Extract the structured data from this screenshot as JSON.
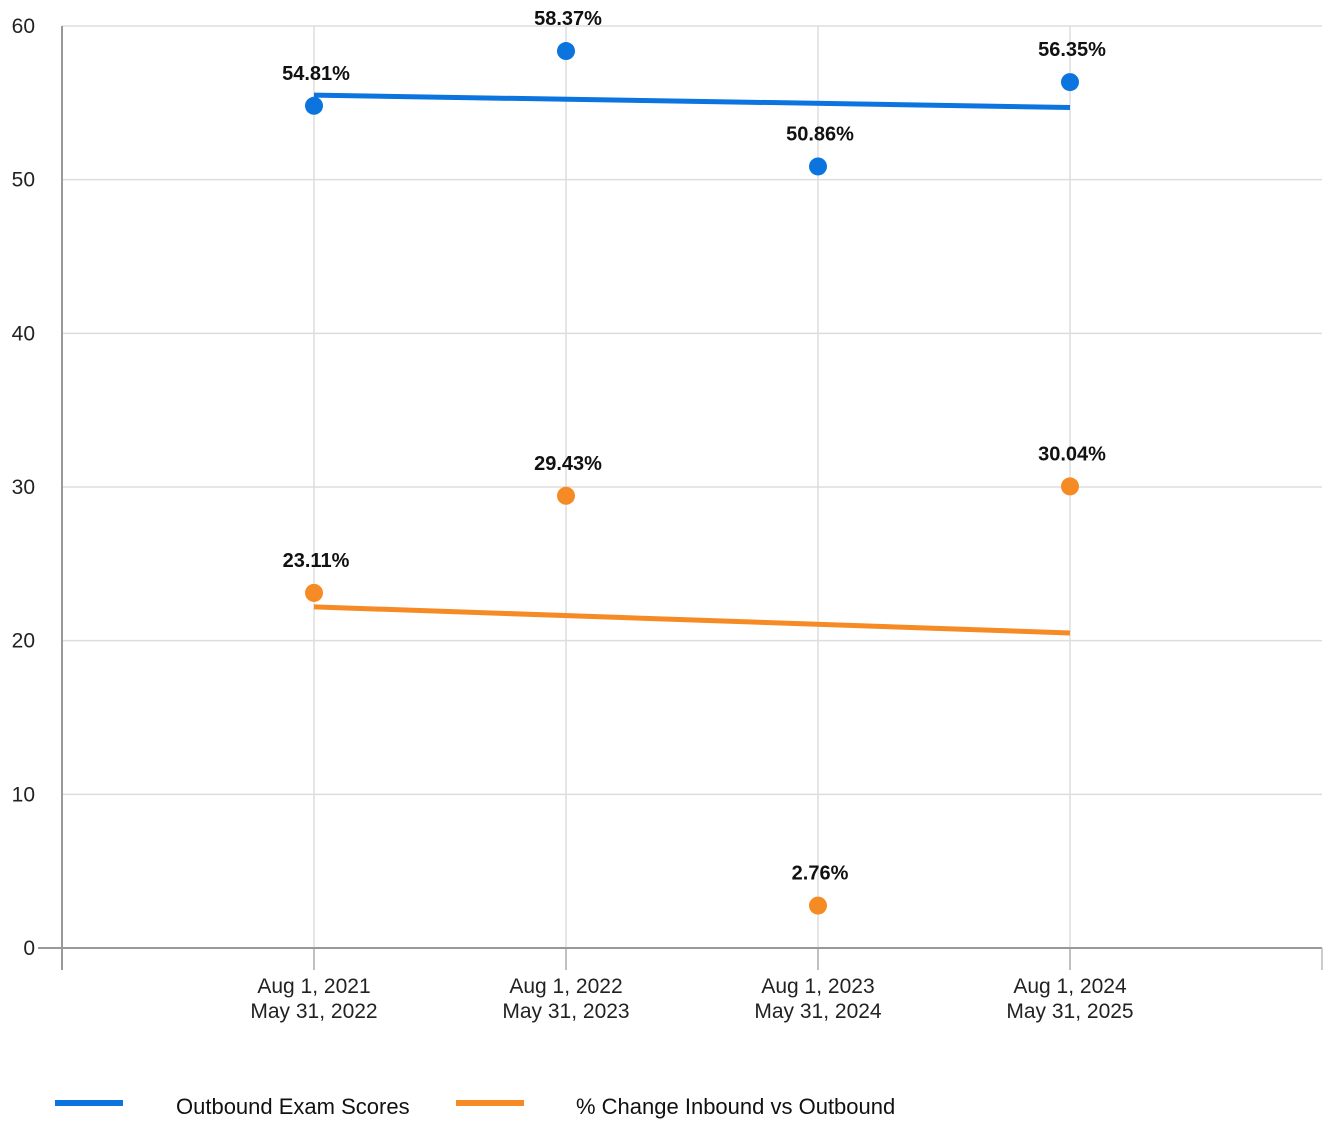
{
  "chart_data": {
    "type": "scatter",
    "categories": [
      [
        "Aug 1, 2021",
        "May 31, 2022"
      ],
      [
        "Aug 1, 2022",
        "May 31, 2023"
      ],
      [
        "Aug 1, 2023",
        "May 31, 2024"
      ],
      [
        "Aug 1, 2024",
        "May 31, 2025"
      ]
    ],
    "series": [
      {
        "name": "Outbound Exam Scores",
        "color": "#0b74de",
        "values": [
          54.81,
          58.37,
          50.86,
          56.35
        ],
        "labels": [
          "54.81%",
          "58.37%",
          "50.86%",
          "56.35%"
        ],
        "trendline": [
          55.5,
          54.7
        ]
      },
      {
        "name": "% Change Inbound vs Outbound",
        "color": "#f68a24",
        "values": [
          23.11,
          29.43,
          2.76,
          30.04
        ],
        "labels": [
          "23.11%",
          "29.43%",
          "2.76%",
          "30.04%"
        ],
        "trendline": [
          22.2,
          20.5
        ]
      }
    ],
    "y_ticks": [
      "0",
      "10",
      "20",
      "30",
      "40",
      "50",
      "60"
    ],
    "ylim": [
      0,
      60
    ],
    "grid": true,
    "legend": "bottom-left",
    "title": "",
    "xlabel": "",
    "ylabel": ""
  }
}
